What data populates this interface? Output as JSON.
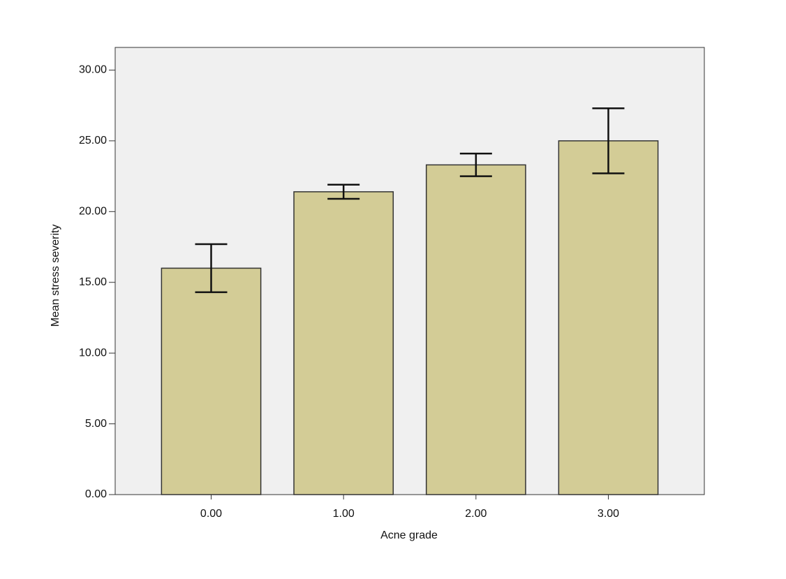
{
  "chart_data": {
    "type": "bar",
    "x_label": "Acne grade",
    "y_label": "Mean stress severity",
    "categories": [
      "0.00",
      "1.00",
      "2.00",
      "3.00"
    ],
    "values": [
      16.0,
      21.4,
      23.3,
      25.0
    ],
    "errors": [
      1.7,
      0.5,
      0.8,
      2.3
    ],
    "color": "#d3cc96",
    "ylim": [
      0,
      31.6
    ],
    "yticks": [
      {
        "value": 0,
        "label": "0.00"
      },
      {
        "value": 5,
        "label": "5.00"
      },
      {
        "value": 10,
        "label": "10.00"
      },
      {
        "value": 15,
        "label": "15.00"
      },
      {
        "value": 20,
        "label": "20.00"
      },
      {
        "value": 25,
        "label": "25.00"
      },
      {
        "value": 30,
        "label": "30.00"
      }
    ],
    "grid": false
  }
}
